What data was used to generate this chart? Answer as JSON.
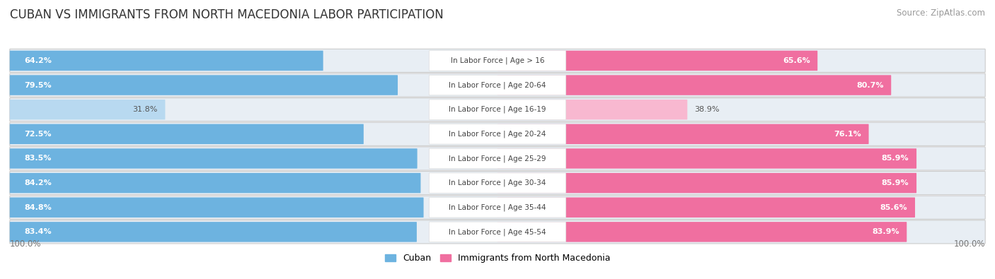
{
  "title": "Cuban vs Immigrants from North Macedonia Labor Participation",
  "source": "Source: ZipAtlas.com",
  "categories": [
    "In Labor Force | Age > 16",
    "In Labor Force | Age 20-64",
    "In Labor Force | Age 16-19",
    "In Labor Force | Age 20-24",
    "In Labor Force | Age 25-29",
    "In Labor Force | Age 30-34",
    "In Labor Force | Age 35-44",
    "In Labor Force | Age 45-54"
  ],
  "cuban_values": [
    64.2,
    79.5,
    31.8,
    72.5,
    83.5,
    84.2,
    84.8,
    83.4
  ],
  "macedonia_values": [
    65.6,
    80.7,
    38.9,
    76.1,
    85.9,
    85.9,
    85.6,
    83.9
  ],
  "cuban_color": "#6db3e0",
  "cuban_color_light": "#b8d9f0",
  "macedonia_color": "#f06fa0",
  "macedonia_color_light": "#f8b8d0",
  "row_bg_color": "#e8eef4",
  "legend_cuban": "Cuban",
  "legend_macedonia": "Immigrants from North Macedonia",
  "title_fontsize": 12,
  "source_fontsize": 8.5,
  "bar_label_fontsize": 8,
  "category_fontsize": 7.5,
  "legend_fontsize": 9,
  "max_val": 100.0
}
